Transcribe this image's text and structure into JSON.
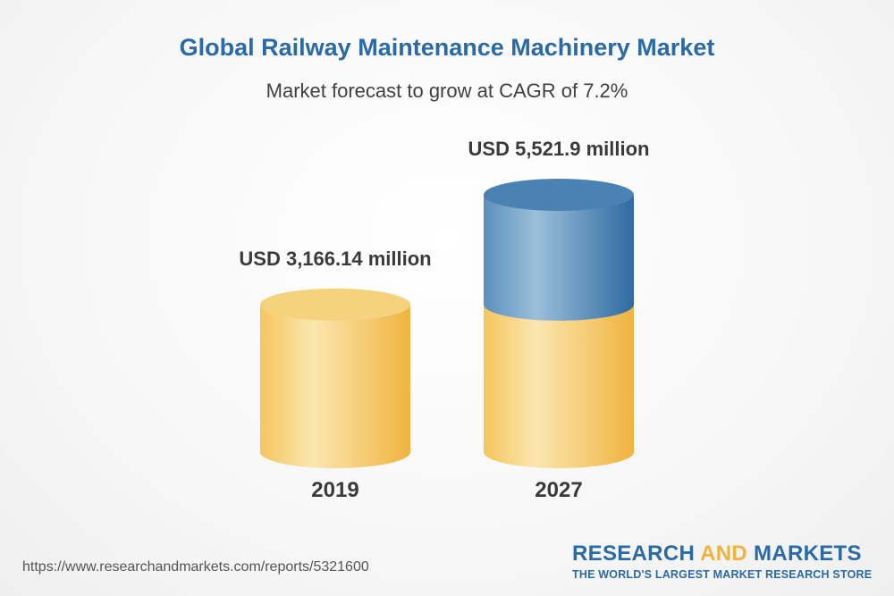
{
  "header": {
    "title": "Global Railway Maintenance Machinery Market",
    "subtitle": "Market forecast to grow at CAGR of 7.2%"
  },
  "chart_data": {
    "type": "bar",
    "categories": [
      "2019",
      "2027"
    ],
    "values": [
      3166.14,
      5521.9
    ],
    "value_labels": [
      "USD 3,166.14 million",
      "USD 5,521.9 million"
    ],
    "base_value_2027": 3166.14,
    "colors": {
      "base": "#f2c35a",
      "base_light": "#fbe7b2",
      "growth": "#4f88b8",
      "growth_light": "#9ec0da",
      "label": "#3a3a3a"
    }
  },
  "footer": {
    "source_url": "https://www.researchandmarkets.com/reports/5321600",
    "brand_name_part1": "RESEARCH ",
    "brand_name_accent": "AND",
    "brand_name_part2": " MARKETS",
    "brand_tagline": "THE WORLD'S LARGEST MARKET RESEARCH STORE"
  }
}
